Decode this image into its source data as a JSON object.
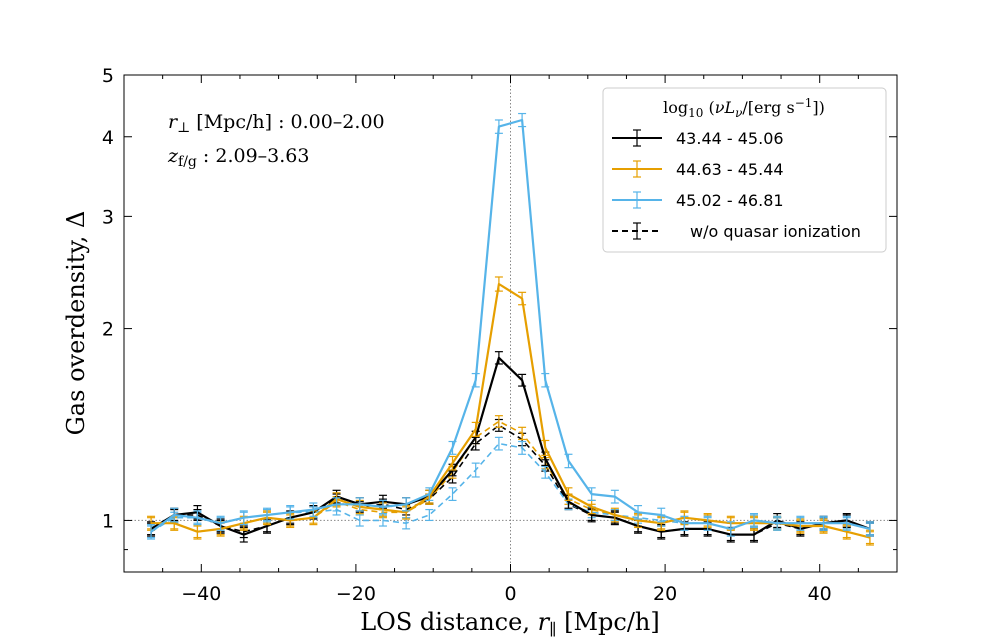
{
  "chart_data": {
    "type": "line",
    "xlabel": "LOS distance, r∥ [Mpc/h]",
    "ylabel": "Gas overdensity, Δ",
    "xlim": [
      -50,
      50
    ],
    "ylim": [
      0.83,
      5
    ],
    "yscale": "log",
    "xticks": [
      -40,
      -20,
      0,
      20,
      40
    ],
    "yticks": [
      1,
      2,
      3,
      4,
      5
    ],
    "annotations": {
      "rperp": "r⊥ [Mpc/h] : 0.00–2.00",
      "zfg": "zf/g : 2.09–3.63"
    },
    "legend": {
      "title": "log10 (νLν/[erg s−1])",
      "placement": "top-right",
      "entries": [
        "43.44 - 45.06",
        "44.63 - 45.44",
        "45.02 - 46.81",
        "w/o quasar ionization"
      ]
    },
    "x": [
      -46.5,
      -43.5,
      -40.5,
      -37.5,
      -34.5,
      -31.5,
      -28.5,
      -25.5,
      -22.5,
      -19.5,
      -16.5,
      -13.5,
      -10.5,
      -7.5,
      -4.5,
      -1.5,
      1.5,
      4.5,
      7.5,
      10.5,
      13.5,
      16.5,
      19.5,
      22.5,
      25.5,
      28.5,
      31.5,
      34.5,
      37.5,
      40.5,
      43.5,
      46.5
    ],
    "series": [
      {
        "name": "43.44 - 45.06",
        "color": "#000000",
        "dashed": false,
        "values": [
          0.97,
          1.02,
          1.03,
          0.98,
          0.95,
          0.98,
          1.01,
          1.03,
          1.09,
          1.06,
          1.07,
          1.06,
          1.09,
          1.2,
          1.35,
          1.8,
          1.66,
          1.25,
          1.07,
          1.02,
          1.01,
          0.98,
          0.96,
          0.97,
          0.97,
          0.95,
          0.95,
          1.0,
          0.97,
          0.99,
          1.0,
          0.97
        ],
        "errors": [
          0.025,
          0.025,
          0.025,
          0.025,
          0.025,
          0.025,
          0.025,
          0.025,
          0.025,
          0.025,
          0.025,
          0.025,
          0.025,
          0.025,
          0.03,
          0.04,
          0.035,
          0.03,
          0.025,
          0.025,
          0.025,
          0.025,
          0.025,
          0.025,
          0.025,
          0.025,
          0.025,
          0.025,
          0.025,
          0.025,
          0.025,
          0.025
        ]
      },
      {
        "name": "44.63 - 45.44",
        "color": "#E69F00",
        "dashed": false,
        "values": [
          0.99,
          0.99,
          0.96,
          0.97,
          0.99,
          1.01,
          1.0,
          1.01,
          1.08,
          1.05,
          1.04,
          1.03,
          1.09,
          1.23,
          1.39,
          2.35,
          2.23,
          1.3,
          1.1,
          1.05,
          1.02,
          1.0,
          0.99,
          1.01,
          1.0,
          0.99,
          0.99,
          0.99,
          0.98,
          0.98,
          0.96,
          0.94
        ],
        "errors": [
          0.025,
          0.025,
          0.025,
          0.025,
          0.025,
          0.025,
          0.025,
          0.025,
          0.025,
          0.025,
          0.025,
          0.025,
          0.025,
          0.03,
          0.035,
          0.06,
          0.05,
          0.035,
          0.025,
          0.025,
          0.025,
          0.025,
          0.025,
          0.025,
          0.025,
          0.025,
          0.025,
          0.025,
          0.025,
          0.025,
          0.025,
          0.025
        ]
      },
      {
        "name": "45.02 - 46.81",
        "color": "#56B4E9",
        "dashed": false,
        "values": [
          0.96,
          1.02,
          1.01,
          0.99,
          1.01,
          1.02,
          1.03,
          1.04,
          1.06,
          1.06,
          1.05,
          1.06,
          1.1,
          1.3,
          1.66,
          4.15,
          4.25,
          1.66,
          1.24,
          1.1,
          1.09,
          1.03,
          1.02,
          0.99,
          0.99,
          0.97,
          1.0,
          0.99,
          0.99,
          0.99,
          0.99,
          0.97
        ],
        "errors": [
          0.025,
          0.025,
          0.025,
          0.025,
          0.025,
          0.025,
          0.025,
          0.025,
          0.025,
          0.025,
          0.025,
          0.025,
          0.025,
          0.03,
          0.04,
          0.1,
          0.1,
          0.04,
          0.03,
          0.025,
          0.025,
          0.025,
          0.025,
          0.025,
          0.025,
          0.025,
          0.025,
          0.025,
          0.025,
          0.025,
          0.025,
          0.025
        ]
      },
      {
        "name": "w/o quasar ionization (43.44 - 45.06)",
        "color": "#000000",
        "dashed": true,
        "values": [
          0.97,
          1.02,
          1.02,
          0.98,
          0.96,
          0.98,
          1.01,
          1.03,
          1.08,
          1.05,
          1.06,
          1.04,
          1.08,
          1.17,
          1.32,
          1.41,
          1.34,
          1.22,
          1.06,
          1.02,
          1.01,
          0.98,
          0.96,
          0.97,
          0.97,
          0.95,
          0.95,
          0.99,
          0.97,
          0.99,
          1.0,
          0.97
        ],
        "errors": [
          0.02,
          0.02,
          0.02,
          0.02,
          0.02,
          0.02,
          0.02,
          0.02,
          0.02,
          0.02,
          0.02,
          0.02,
          0.02,
          0.025,
          0.03,
          0.03,
          0.03,
          0.025,
          0.02,
          0.02,
          0.02,
          0.02,
          0.02,
          0.02,
          0.02,
          0.02,
          0.02,
          0.02,
          0.02,
          0.02,
          0.02,
          0.02
        ]
      },
      {
        "name": "w/o quasar ionization (44.63 - 45.44)",
        "color": "#E69F00",
        "dashed": true,
        "values": [
          0.99,
          0.99,
          0.96,
          0.97,
          0.99,
          1.01,
          1.0,
          1.01,
          1.07,
          1.04,
          1.03,
          1.03,
          1.08,
          1.19,
          1.35,
          1.43,
          1.37,
          1.23,
          1.08,
          1.04,
          1.02,
          1.0,
          0.99,
          1.01,
          1.0,
          0.99,
          0.99,
          0.99,
          0.98,
          0.98,
          0.96,
          0.94
        ],
        "errors": [
          0.02,
          0.02,
          0.02,
          0.02,
          0.02,
          0.02,
          0.02,
          0.02,
          0.02,
          0.02,
          0.02,
          0.02,
          0.02,
          0.025,
          0.03,
          0.03,
          0.03,
          0.025,
          0.02,
          0.02,
          0.02,
          0.02,
          0.02,
          0.02,
          0.02,
          0.02,
          0.02,
          0.02,
          0.02,
          0.02,
          0.02,
          0.02
        ]
      },
      {
        "name": "w/o quasar ionization (45.02 - 46.81)",
        "color": "#56B4E9",
        "dashed": true,
        "values": [
          0.96,
          1.01,
          1.01,
          0.99,
          1.01,
          1.02,
          1.03,
          1.03,
          1.04,
          1.0,
          1.0,
          0.99,
          1.02,
          1.1,
          1.2,
          1.32,
          1.3,
          1.19,
          1.06,
          1.03,
          1.02,
          1.01,
          1.0,
          0.99,
          0.99,
          0.97,
          1.0,
          0.99,
          0.99,
          0.99,
          0.99,
          0.97
        ],
        "errors": [
          0.02,
          0.02,
          0.02,
          0.02,
          0.02,
          0.02,
          0.02,
          0.02,
          0.02,
          0.02,
          0.02,
          0.02,
          0.02,
          0.025,
          0.03,
          0.03,
          0.03,
          0.025,
          0.02,
          0.02,
          0.02,
          0.02,
          0.02,
          0.02,
          0.02,
          0.02,
          0.02,
          0.02,
          0.02,
          0.02,
          0.02,
          0.02
        ]
      }
    ]
  }
}
